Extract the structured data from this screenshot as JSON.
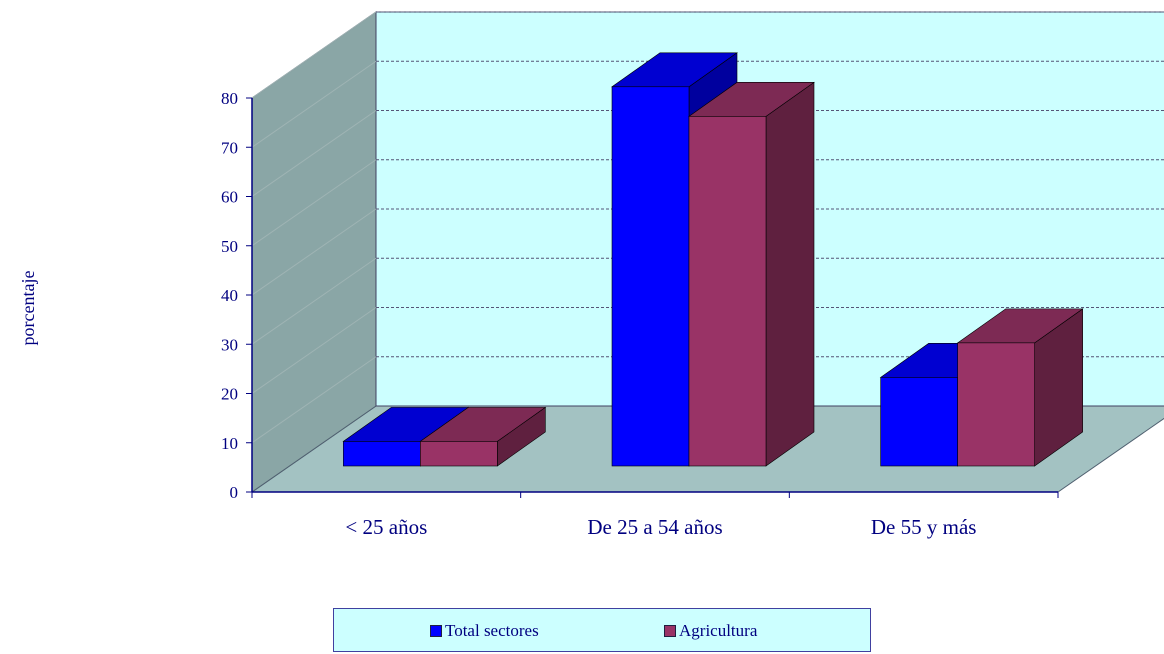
{
  "chart_data": {
    "type": "bar",
    "categories": [
      "< 25 años",
      "De 25 a 54 años",
      "De 55 y más"
    ],
    "series": [
      {
        "name": "Total sectores",
        "values": [
          5,
          77,
          18
        ]
      },
      {
        "name": "Agricultura",
        "values": [
          5,
          71,
          25
        ]
      }
    ],
    "ylabel": "porcentaje",
    "xlabel": "",
    "ylim": [
      0,
      80
    ],
    "yticks": [
      "0",
      "10",
      "20",
      "30",
      "40",
      "50",
      "60",
      "70",
      "80"
    ],
    "grid": true,
    "legend_position": "bottom",
    "three_d": true
  },
  "colors": {
    "series": [
      "#0000ff",
      "#993366"
    ],
    "back_wall": "#ccffff",
    "side_wall": "#8aa6a6",
    "floor": "#a3c2c2",
    "text": "#000080"
  }
}
